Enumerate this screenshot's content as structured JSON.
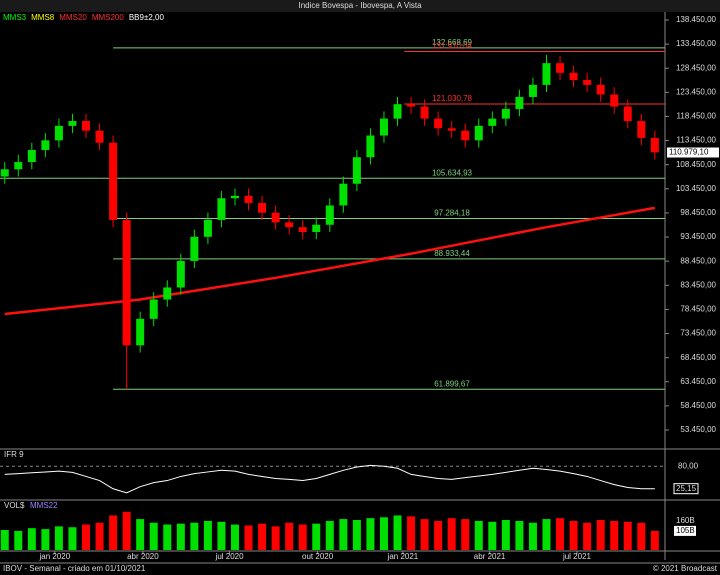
{
  "chart_data": [
    {
      "type": "candlestick",
      "title": "Indice Bovespa - Ibovespa, A Vista",
      "legend": [
        {
          "name": "MMS3",
          "color": "#00ff00"
        },
        {
          "name": "MMS8",
          "color": "#ffff00"
        },
        {
          "name": "MMS20",
          "color": "#ff3030"
        },
        {
          "name": "MMS200",
          "color": "#ff3030"
        },
        {
          "name": "BB9±2,00",
          "color": "#ffffff"
        }
      ],
      "x": [
        0,
        2,
        4,
        6,
        8,
        10,
        12,
        14,
        16,
        18,
        20,
        22,
        24,
        26,
        28,
        30,
        32,
        34,
        36,
        38,
        40,
        42,
        44,
        46,
        48,
        50,
        52,
        54,
        56,
        58,
        60,
        62,
        64,
        66,
        68,
        70,
        72,
        74,
        76,
        78,
        80,
        82,
        84,
        86,
        88,
        90,
        92,
        94,
        96
      ],
      "open": [
        106000,
        107500,
        109000,
        111500,
        113500,
        116500,
        117500,
        115500,
        113000,
        97000,
        71000,
        76500,
        80500,
        83000,
        88500,
        93500,
        97000,
        101500,
        102000,
        100500,
        98500,
        96500,
        95500,
        94500,
        96000,
        100000,
        104500,
        110000,
        114500,
        118000,
        121000,
        120500,
        118000,
        116000,
        115500,
        113500,
        116500,
        118000,
        120000,
        122500,
        125000,
        129500,
        127500,
        126000,
        125000,
        123000,
        120500,
        117500,
        114000
      ],
      "high": [
        109000,
        110500,
        113000,
        115000,
        118000,
        119000,
        119000,
        117000,
        114500,
        98500,
        78000,
        82000,
        84500,
        90000,
        95000,
        98500,
        103000,
        103500,
        103500,
        102000,
        100000,
        98000,
        97000,
        97500,
        101500,
        106000,
        111500,
        116000,
        119500,
        122500,
        122500,
        122000,
        119500,
        117500,
        117000,
        118000,
        119500,
        121500,
        124000,
        126500,
        131200,
        131000,
        129000,
        127500,
        126500,
        124500,
        122000,
        119000,
        115500
      ],
      "low": [
        104500,
        106000,
        107500,
        110000,
        112000,
        115000,
        114000,
        111500,
        95500,
        61900,
        69500,
        75000,
        79000,
        81500,
        87000,
        92000,
        95500,
        100000,
        99000,
        97000,
        95000,
        94000,
        93000,
        93000,
        94500,
        98500,
        103000,
        108500,
        113000,
        116500,
        119000,
        116500,
        114500,
        114000,
        112000,
        112000,
        115000,
        116500,
        118500,
        121000,
        123500,
        126000,
        124500,
        123500,
        121500,
        119000,
        116000,
        112500,
        109500
      ],
      "close": [
        107500,
        109000,
        111500,
        113500,
        116500,
        117500,
        115500,
        113000,
        97000,
        71000,
        76500,
        80500,
        83000,
        88500,
        93500,
        97000,
        101500,
        102000,
        100500,
        98500,
        96500,
        95500,
        94500,
        96000,
        100000,
        104500,
        110000,
        114500,
        118000,
        121000,
        120500,
        118000,
        116000,
        115500,
        113500,
        116500,
        118000,
        120000,
        122500,
        125000,
        129500,
        127500,
        126000,
        125000,
        123000,
        120500,
        117500,
        114000,
        111000
      ],
      "up_color": "#00e000",
      "down_color": "#ff0000",
      "ma200": {
        "x": [
          0,
          20,
          40,
          60,
          80,
          96
        ],
        "values": [
          77500,
          80500,
          85000,
          90000,
          95500,
          99500
        ],
        "color": "#ff1010"
      },
      "xlim": [
        -0.7,
        97.5
      ],
      "xticks": [
        {
          "value": 7.4,
          "label": "jan 2020"
        },
        {
          "value": 20.4,
          "label": "abr 2020"
        },
        {
          "value": 33.2,
          "label": "jul 2020"
        },
        {
          "value": 46.2,
          "label": "out 2020"
        },
        {
          "value": 58.8,
          "label": "jan 2021"
        },
        {
          "value": 71.6,
          "label": "abr 2021"
        },
        {
          "value": 84.5,
          "label": "jul 2021"
        }
      ],
      "ylim": [
        49720,
        139690
      ],
      "yticks": [
        {
          "value": 138450,
          "label": "138.450,00"
        },
        {
          "value": 133450,
          "label": "133.450,00"
        },
        {
          "value": 128450,
          "label": "128.450,00"
        },
        {
          "value": 123450,
          "label": "123.450,00"
        },
        {
          "value": 118450,
          "label": "118.450,00"
        },
        {
          "value": 113450,
          "label": "113.450,00"
        },
        {
          "value": 108450,
          "label": "108.450,00"
        },
        {
          "value": 103450,
          "label": "103.450,00"
        },
        {
          "value": 98450,
          "label": "98.450,00"
        },
        {
          "value": 93450,
          "label": "93.450,00"
        },
        {
          "value": 88450,
          "label": "88.450,00"
        },
        {
          "value": 83450,
          "label": "83.450,00"
        },
        {
          "value": 78450,
          "label": "78.450,00"
        },
        {
          "value": 73450,
          "label": "73.450,00"
        },
        {
          "value": 68450,
          "label": "68.450,00"
        },
        {
          "value": 63450,
          "label": "63.450,00"
        },
        {
          "value": 58450,
          "label": "58.450,00"
        },
        {
          "value": 53450,
          "label": "53.450,00"
        }
      ],
      "levels": [
        {
          "value": 132668.69,
          "label": "132.668,69",
          "color": "#80d080",
          "from": 16
        },
        {
          "value": 131910.04,
          "label": "131.910,04",
          "color": "#ff3030",
          "from": 59
        },
        {
          "value": 121030.78,
          "label": "121.030,78",
          "color": "#ff3030",
          "from": 59
        },
        {
          "value": 105634.93,
          "label": "105.634,93",
          "color": "#80d080",
          "from": -0.7
        },
        {
          "value": 97284.18,
          "label": "97.284,18",
          "color": "#80d080",
          "from": 16
        },
        {
          "value": 88933.44,
          "label": "88.933,44",
          "color": "#80d080",
          "from": 16
        },
        {
          "value": 61899.67,
          "label": "61.899,67",
          "color": "#80d080",
          "from": 16
        }
      ],
      "last_price": {
        "value": 110979.1,
        "label": "110.979,10"
      }
    },
    {
      "type": "line",
      "title": "IFR 9",
      "x": [
        0,
        2,
        4,
        6,
        8,
        10,
        12,
        14,
        16,
        18,
        20,
        22,
        24,
        26,
        28,
        30,
        32,
        34,
        36,
        38,
        40,
        42,
        44,
        46,
        48,
        50,
        52,
        54,
        56,
        58,
        60,
        62,
        64,
        66,
        68,
        70,
        72,
        74,
        76,
        78,
        80,
        82,
        84,
        86,
        88,
        90,
        92,
        94,
        96
      ],
      "values": [
        60,
        62,
        64,
        66,
        68,
        65,
        55,
        45,
        25,
        15,
        30,
        40,
        45,
        55,
        62,
        66,
        70,
        68,
        60,
        55,
        50,
        48,
        45,
        50,
        60,
        70,
        78,
        82,
        80,
        75,
        60,
        55,
        50,
        48,
        52,
        56,
        60,
        65,
        70,
        75,
        72,
        68,
        62,
        55,
        45,
        35,
        28,
        25,
        25
      ],
      "color": "#ffffff",
      "ylim": [
        0,
        100
      ],
      "yticks": [
        {
          "value": 80,
          "label": "80,00"
        }
      ],
      "last": {
        "value": 25.15,
        "label": "25,15"
      }
    },
    {
      "type": "bar",
      "title": "VOL$",
      "legend": "MMS22",
      "x": [
        0,
        2,
        4,
        6,
        8,
        10,
        12,
        14,
        16,
        18,
        20,
        22,
        24,
        26,
        28,
        30,
        32,
        34,
        36,
        38,
        40,
        42,
        44,
        46,
        48,
        50,
        52,
        54,
        56,
        58,
        60,
        62,
        64,
        66,
        68,
        70,
        72,
        74,
        76,
        78,
        80,
        82,
        84,
        86,
        88,
        90,
        92,
        94,
        96
      ],
      "values": [
        110,
        105,
        120,
        115,
        130,
        125,
        140,
        150,
        190,
        210,
        170,
        150,
        140,
        145,
        150,
        160,
        155,
        140,
        135,
        145,
        130,
        150,
        140,
        145,
        160,
        170,
        165,
        175,
        180,
        190,
        185,
        170,
        160,
        175,
        170,
        160,
        155,
        165,
        160,
        150,
        170,
        175,
        160,
        150,
        165,
        160,
        155,
        150,
        105
      ],
      "ylim": [
        0,
        220
      ],
      "yticks": [
        {
          "value": 160,
          "label": "160B"
        }
      ],
      "last": {
        "value": 105,
        "label": "105B"
      }
    }
  ],
  "footer": {
    "left": "IBOV - Semanal - criado em 01/10/2021",
    "right": "© 2021 Broadcast"
  }
}
